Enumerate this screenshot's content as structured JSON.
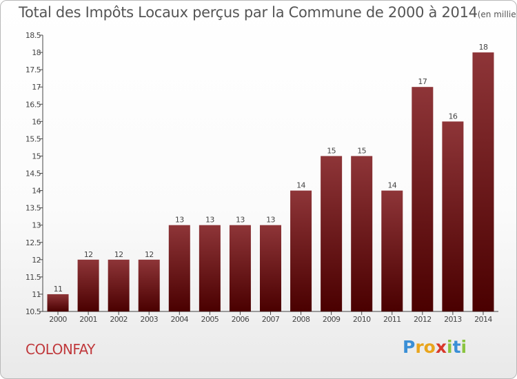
{
  "title": "Total des Impôts Locaux perçus par la Commune de 2000 à 2014",
  "unit": "(en milliers d'€)",
  "commune": "COLONFAY",
  "logo": {
    "letters": [
      "P",
      "r",
      "o",
      "x",
      "i",
      "t",
      "i"
    ],
    "colors": [
      "#3a8fd6",
      "#e9a51d",
      "#e9a51d",
      "#d8392b",
      "#8ac43f",
      "#3a8fd6",
      "#8ac43f"
    ]
  },
  "colors": {
    "bar_top": "#8e3538",
    "bar_bottom": "#4a0000",
    "axis": "#444444",
    "grid": "#cccccc"
  },
  "chart_data": {
    "type": "bar",
    "categories": [
      "2000",
      "2001",
      "2002",
      "2003",
      "2004",
      "2005",
      "2006",
      "2007",
      "2008",
      "2009",
      "2010",
      "2011",
      "2012",
      "2013",
      "2014"
    ],
    "values": [
      11,
      12,
      12,
      12,
      13,
      13,
      13,
      13,
      14,
      15,
      15,
      14,
      17,
      16,
      18
    ],
    "ylim": [
      10.5,
      18.5
    ],
    "yticks": [
      "10.5",
      "11",
      "11.5",
      "12",
      "12.5",
      "13",
      "13.5",
      "14",
      "14.5",
      "15",
      "15.5",
      "16",
      "16.5",
      "17",
      "17.5",
      "18",
      "18.5"
    ],
    "grid": false,
    "data_labels": true
  }
}
